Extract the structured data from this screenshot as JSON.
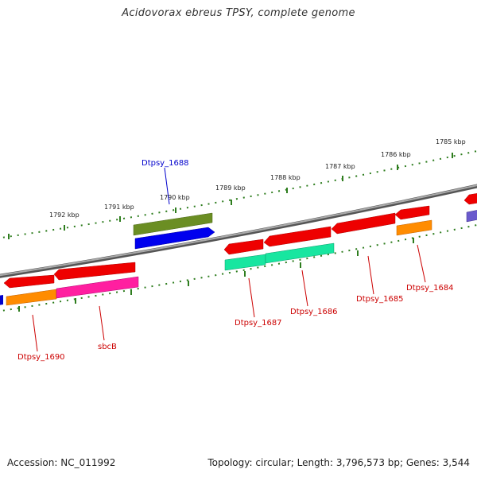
{
  "title": "Acidovorax ebreus TPSY, complete genome",
  "footer": {
    "accession": "Accession: NC_011992",
    "summary": "Topology: circular; Length: 3,796,573 bp; Genes: 3,544"
  },
  "colors": {
    "backbone": "#808080",
    "tick": "#2e7d1e",
    "label_red": "#cc0000",
    "label_blue": "#0000cc"
  },
  "kbp_labels": [
    "1792 kbp",
    "1791 kbp",
    "1790 kbp",
    "1789 kbp",
    "1788 kbp",
    "1787 kbp",
    "1786 kbp",
    "1785 kbp"
  ],
  "gene_labels": {
    "dtpsy_1688": "Dtpsy_1688",
    "dtpsy_1690": "Dtpsy_1690",
    "sbcB": "sbcB",
    "dtpsy_1687": "Dtpsy_1687",
    "dtpsy_1686": "Dtpsy_1686",
    "dtpsy_1685": "Dtpsy_1685",
    "dtpsy_1684": "Dtpsy_1684"
  }
}
